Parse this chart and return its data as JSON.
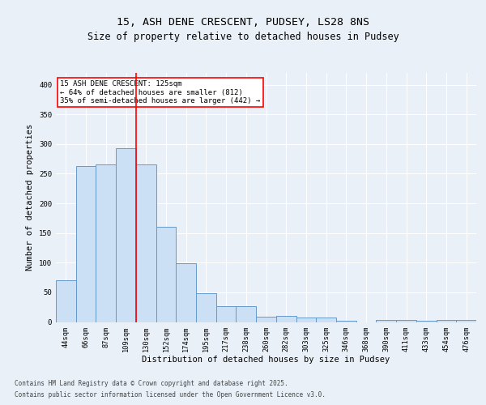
{
  "title_line1": "15, ASH DENE CRESCENT, PUDSEY, LS28 8NS",
  "title_line2": "Size of property relative to detached houses in Pudsey",
  "xlabel": "Distribution of detached houses by size in Pudsey",
  "ylabel": "Number of detached properties",
  "bar_labels": [
    "44sqm",
    "66sqm",
    "87sqm",
    "109sqm",
    "130sqm",
    "152sqm",
    "174sqm",
    "195sqm",
    "217sqm",
    "238sqm",
    "260sqm",
    "282sqm",
    "303sqm",
    "325sqm",
    "346sqm",
    "368sqm",
    "390sqm",
    "411sqm",
    "433sqm",
    "454sqm",
    "476sqm"
  ],
  "bar_values": [
    70,
    263,
    265,
    293,
    265,
    160,
    99,
    48,
    27,
    27,
    9,
    10,
    7,
    8,
    2,
    0,
    4,
    3,
    2,
    4,
    4
  ],
  "bar_color": "#cce0f5",
  "bar_edge_color": "#6699cc",
  "vline_color": "red",
  "annotation_text": "15 ASH DENE CRESCENT: 125sqm\n← 64% of detached houses are smaller (812)\n35% of semi-detached houses are larger (442) →",
  "ylim": [
    0,
    420
  ],
  "yticks": [
    0,
    50,
    100,
    150,
    200,
    250,
    300,
    350,
    400
  ],
  "background_color": "#eaf0f8",
  "plot_bg_color": "#eaf0f8",
  "grid_color": "#ffffff",
  "footer_line1": "Contains HM Land Registry data © Crown copyright and database right 2025.",
  "footer_line2": "Contains public sector information licensed under the Open Government Licence v3.0.",
  "title_fontsize": 9.5,
  "subtitle_fontsize": 8.5,
  "axis_label_fontsize": 7.5,
  "tick_fontsize": 6.2,
  "annotation_fontsize": 6.5,
  "footer_fontsize": 5.5
}
